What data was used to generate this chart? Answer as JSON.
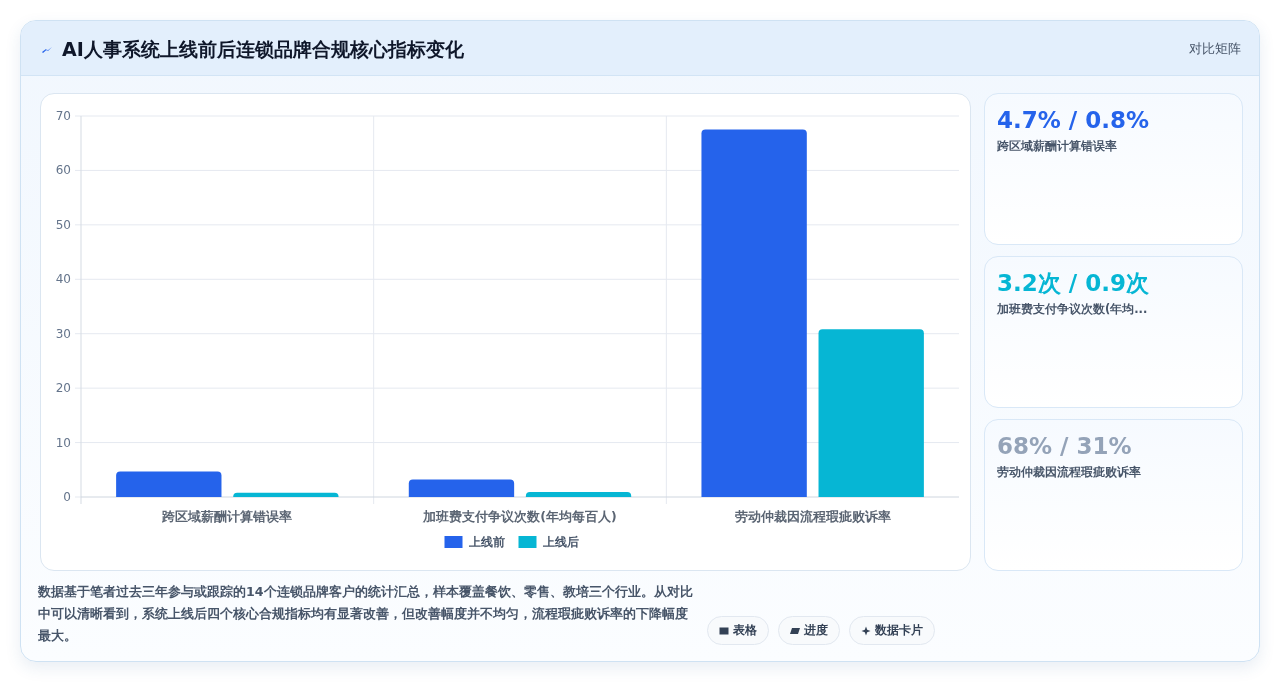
{
  "chart_data": [
    {
      "type": "other",
      "title": "AI人事系统上线前后连锁品牌合规核心指标变化",
      "subtitle": "对比矩阵"
    },
    {
      "type": "bar",
      "categories": [
        "跨区域薪酬计算错误率",
        "加班费支付争议次数(年均每百人)",
        "劳动仲裁因流程瑕疵败诉率"
      ],
      "series": [
        {
          "name": "上线前",
          "color": "#2563eb",
          "values": [
            4.7,
            3.2,
            67.5
          ]
        },
        {
          "name": "上线后",
          "color": "#06b6d4",
          "values": [
            0.8,
            0.9,
            30.8
          ]
        }
      ],
      "ylim": [
        0,
        70
      ],
      "yticks": [
        0,
        10,
        20,
        30,
        40,
        50,
        60,
        70
      ],
      "grid": true,
      "legend": "bottom",
      "annotations": [
        "数据基于笔者过去三年参与或跟踪的14个连锁品牌客户的统计汇总，样本覆盖餐饮、零售、教培三个行业。从对比中可以清晰看到，系统上线后四个核心合规指标均有显著改善，但改善幅度并不均匀，流程瑕疵败诉率的下降幅度最大。",
        "表格",
        "进度",
        "数据卡片"
      ]
    },
    {
      "type": "other",
      "title": "4.7% / 0.8%",
      "subtitle": "跨区域薪酬计算错误率"
    },
    {
      "type": "other",
      "title": "3.2次 / 0.9次",
      "subtitle": "加班费支付争议次数(年均..."
    },
    {
      "type": "other",
      "title": "68% / 31%",
      "subtitle": "劳动仲裁因流程瑕疵败诉率"
    }
  ]
}
